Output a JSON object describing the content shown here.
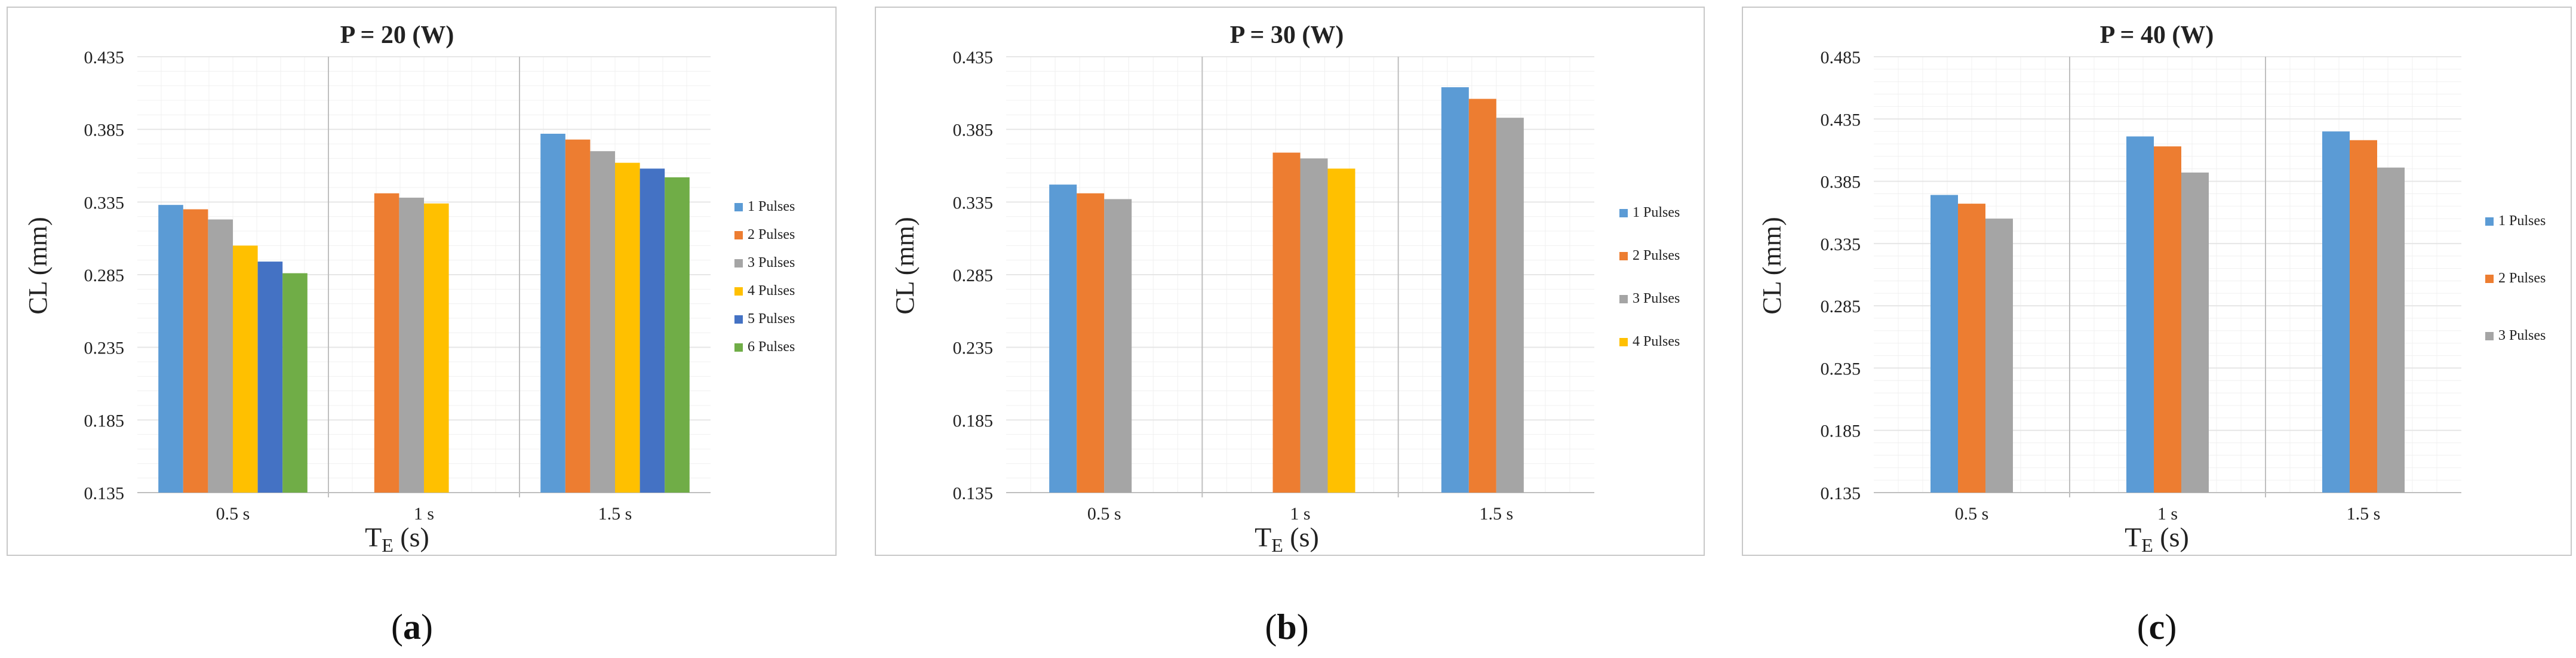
{
  "figure": {
    "panel_labels": [
      "a",
      "b",
      "c"
    ],
    "series_colors": {
      "1 Pulses": "#5B9BD5",
      "2 Pulses": "#ED7D31",
      "3 Pulses": "#A5A5A5",
      "4 Pulses": "#FFC000",
      "5 Pulses": "#4472C4",
      "6 Pulses": "#70AD47"
    },
    "colors": {
      "panel_border": "#c8c8c8",
      "gridline": "#e6e6e6",
      "minor_gridline": "#f0f0f0",
      "separator": "#bfbfbf",
      "text": "#222222"
    }
  },
  "chart_data": [
    {
      "type": "bar",
      "panel": "a",
      "title": "P = 20 (W)",
      "xlabel_main": "T",
      "xlabel_sub": "E",
      "xlabel_unit": " (s)",
      "ylabel": "CL (mm)",
      "categories": [
        "0.5 s",
        "1 s",
        "1.5 s"
      ],
      "ylim": [
        0.135,
        0.435
      ],
      "yticks": [
        "0.135",
        "0.185",
        "0.235",
        "0.285",
        "0.335",
        "0.385",
        "0.435"
      ],
      "grid": true,
      "legend_position": "right",
      "series": [
        {
          "name": "1 Pulses",
          "values": [
            0.333,
            null,
            0.382
          ]
        },
        {
          "name": "2 Pulses",
          "values": [
            0.33,
            0.341,
            0.378
          ]
        },
        {
          "name": "3 Pulses",
          "values": [
            0.323,
            0.338,
            0.37
          ]
        },
        {
          "name": "4 Pulses",
          "values": [
            0.305,
            0.334,
            0.362
          ]
        },
        {
          "name": "5 Pulses",
          "values": [
            0.294,
            null,
            0.358
          ]
        },
        {
          "name": "6 Pulses",
          "values": [
            0.286,
            null,
            0.352
          ]
        }
      ]
    },
    {
      "type": "bar",
      "panel": "b",
      "title": "P = 30 (W)",
      "xlabel_main": "T",
      "xlabel_sub": "E",
      "xlabel_unit": " (s)",
      "ylabel": "CL (mm)",
      "categories": [
        "0.5 s",
        "1 s",
        "1.5 s"
      ],
      "ylim": [
        0.135,
        0.435
      ],
      "yticks": [
        "0.135",
        "0.185",
        "0.235",
        "0.285",
        "0.335",
        "0.385",
        "0.435"
      ],
      "grid": true,
      "legend_position": "right",
      "series": [
        {
          "name": "1 Pulses",
          "values": [
            0.347,
            null,
            0.414
          ]
        },
        {
          "name": "2 Pulses",
          "values": [
            0.341,
            0.369,
            0.406
          ]
        },
        {
          "name": "3 Pulses",
          "values": [
            0.337,
            0.365,
            0.393
          ]
        },
        {
          "name": "4 Pulses",
          "values": [
            null,
            0.358,
            null
          ]
        }
      ]
    },
    {
      "type": "bar",
      "panel": "c",
      "title": "P = 40 (W)",
      "xlabel_main": "T",
      "xlabel_sub": "E",
      "xlabel_unit": " (s)",
      "ylabel": "CL (mm)",
      "categories": [
        "0.5 s",
        "1 s",
        "1.5 s"
      ],
      "ylim": [
        0.135,
        0.485
      ],
      "yticks": [
        "0.135",
        "0.185",
        "0.235",
        "0.285",
        "0.335",
        "0.385",
        "0.435",
        "0.485"
      ],
      "grid": true,
      "legend_position": "right",
      "series": [
        {
          "name": "1 Pulses",
          "values": [
            0.374,
            0.421,
            0.425
          ]
        },
        {
          "name": "2 Pulses",
          "values": [
            0.367,
            0.413,
            0.418
          ]
        },
        {
          "name": "3 Pulses",
          "values": [
            0.355,
            0.392,
            0.396
          ]
        }
      ]
    }
  ]
}
